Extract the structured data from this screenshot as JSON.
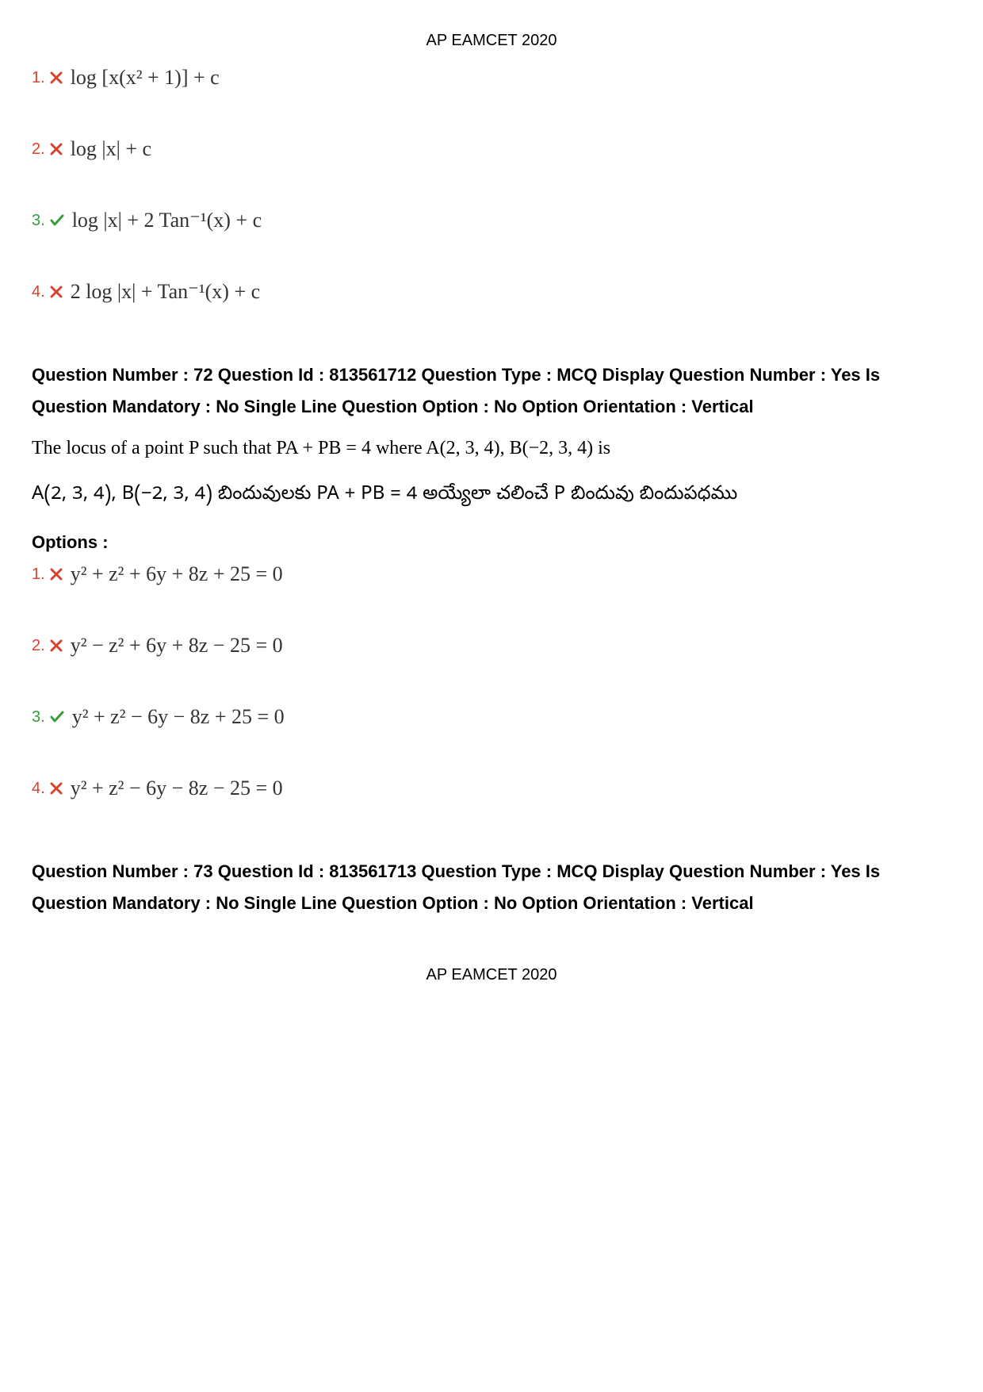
{
  "header": "AP EAMCET 2020",
  "footer": "AP EAMCET 2020",
  "colors": {
    "wrong": "#d9412c",
    "correct": "#3a9b3a",
    "text": "#000000",
    "math": "#333333"
  },
  "top_options": [
    {
      "num": "1.",
      "status": "wrong",
      "text": "log [x(x² + 1)] + c"
    },
    {
      "num": "2.",
      "status": "wrong",
      "text": "log |x| + c"
    },
    {
      "num": "3.",
      "status": "correct",
      "text": "log |x| + 2 Tan⁻¹(x) + c"
    },
    {
      "num": "4.",
      "status": "wrong",
      "text": "2 log |x| + Tan⁻¹(x) + c"
    }
  ],
  "q72": {
    "meta": "Question Number : 72 Question Id : 813561712 Question Type : MCQ Display Question Number : Yes Is Question Mandatory : No Single Line Question Option : No Option Orientation : Vertical",
    "text_en": "The locus of a point P such that PA + PB = 4 where A(2, 3, 4), B(−2, 3, 4) is",
    "text_te": "A(2, 3, 4), B(−2, 3, 4) బిందువులకు PA + PB = 4 అయ్యేలా చలించే P బిందువు బిందుపధము",
    "options_label": "Options :",
    "options": [
      {
        "num": "1.",
        "status": "wrong",
        "text": "y² + z² + 6y + 8z + 25 = 0"
      },
      {
        "num": "2.",
        "status": "wrong",
        "text": "y² − z² + 6y + 8z − 25 = 0"
      },
      {
        "num": "3.",
        "status": "correct",
        "text": "y² + z² − 6y − 8z + 25 = 0"
      },
      {
        "num": "4.",
        "status": "wrong",
        "text": "y² + z² − 6y − 8z − 25 = 0"
      }
    ]
  },
  "q73": {
    "meta": "Question Number : 73 Question Id : 813561713 Question Type : MCQ Display Question Number : Yes Is Question Mandatory : No Single Line Question Option : No Option Orientation : Vertical"
  }
}
